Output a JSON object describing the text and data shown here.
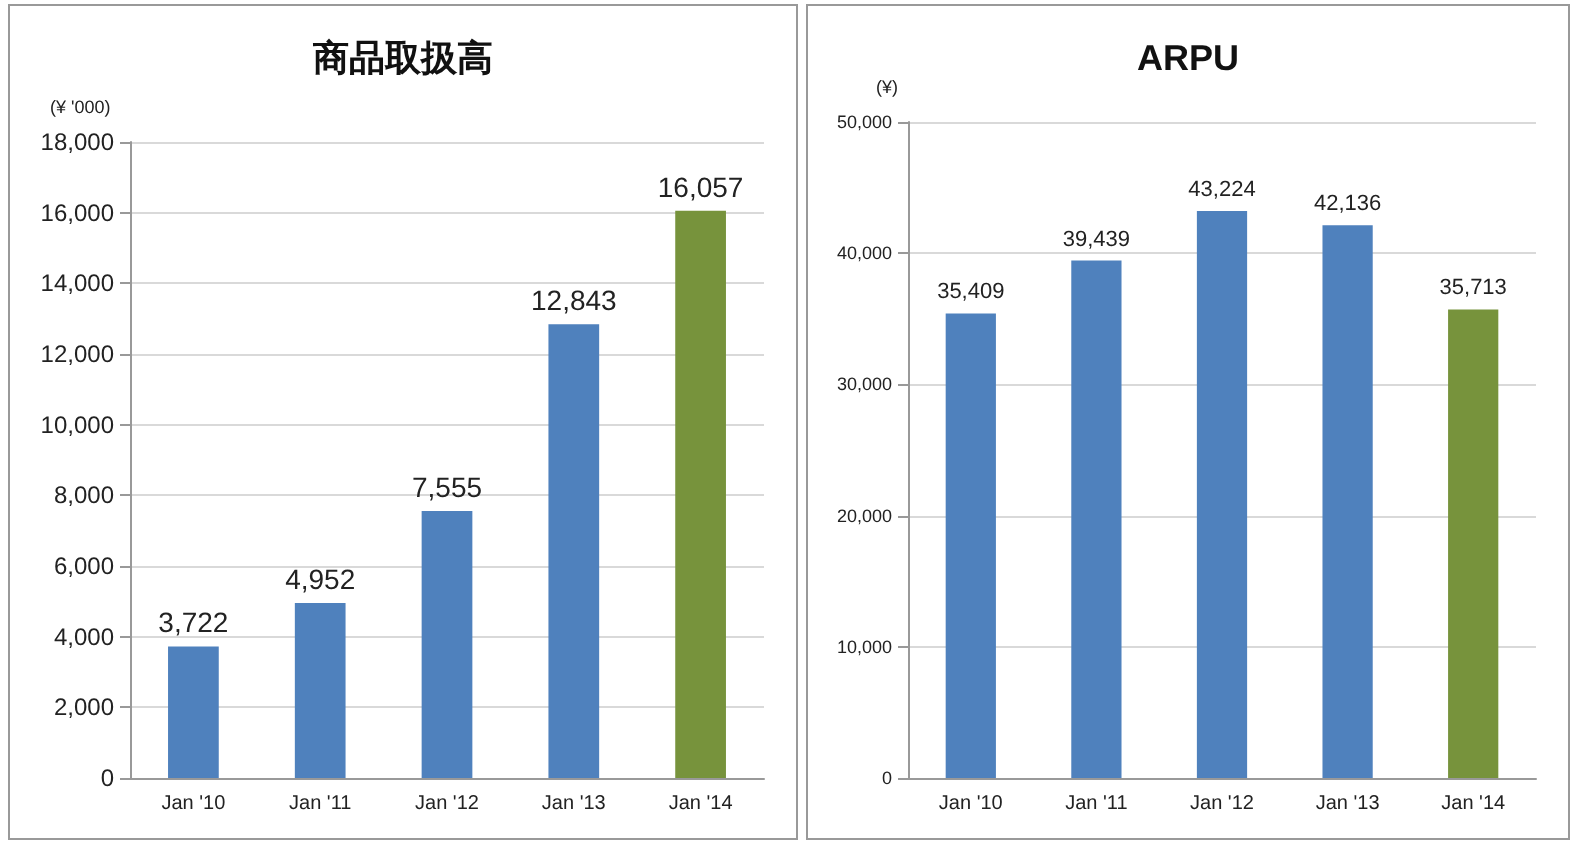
{
  "chart_data": [
    {
      "type": "bar",
      "title": "商品取扱高",
      "ylabel": "(¥ '000)",
      "categories": [
        "Jan '10",
        "Jan '11",
        "Jan '12",
        "Jan '13",
        "Jan '14"
      ],
      "values": [
        3722,
        4952,
        7555,
        12843,
        16057
      ],
      "value_labels": [
        "3,722",
        "4,952",
        "7,555",
        "12,843",
        "16,057"
      ],
      "colors": [
        "#4f81bd",
        "#4f81bd",
        "#4f81bd",
        "#4f81bd",
        "#77933c"
      ],
      "ylim": [
        0,
        18000
      ],
      "yticks": [
        0,
        {
          "value": 2000,
          "label": "2,000"
        },
        {
          "value": 4000,
          "label": "4,000"
        },
        {
          "value": 6000,
          "label": "6,000"
        },
        {
          "value": 8000,
          "label": "8,000"
        },
        {
          "value": 10000,
          "label": "10,000"
        },
        {
          "value": 12000,
          "label": "12,000"
        },
        {
          "value": 14000,
          "label": "14,000"
        },
        {
          "value": 16000,
          "label": "16,000"
        },
        {
          "value": 18000,
          "label": "18,000"
        }
      ],
      "grid": "y"
    },
    {
      "type": "bar",
      "title": "ARPU",
      "ylabel": "(¥)",
      "categories": [
        "Jan '10",
        "Jan '11",
        "Jan '12",
        "Jan '13",
        "Jan '14"
      ],
      "values": [
        35409,
        39439,
        43224,
        42136,
        35713
      ],
      "value_labels": [
        "35,409",
        "39,439",
        "43,224",
        "42,136",
        "35,713"
      ],
      "colors": [
        "#4f81bd",
        "#4f81bd",
        "#4f81bd",
        "#4f81bd",
        "#77933c"
      ],
      "ylim": [
        0,
        50000
      ],
      "yticks": [
        0,
        {
          "value": 10000,
          "label": "10,000"
        },
        {
          "value": 20000,
          "label": "20,000"
        },
        {
          "value": 30000,
          "label": "30,000"
        },
        {
          "value": 40000,
          "label": "40,000"
        },
        {
          "value": 50000,
          "label": "50,000"
        }
      ],
      "grid": "y"
    }
  ]
}
